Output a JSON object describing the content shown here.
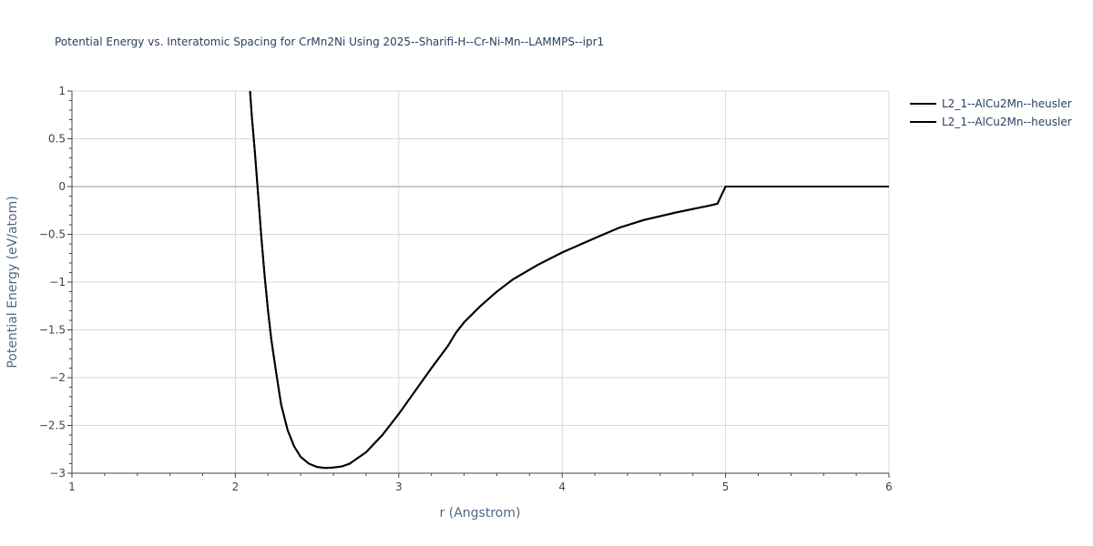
{
  "colors": {
    "background": "#ffffff",
    "grid": "#d9d9d9",
    "zero_line": "#c8c8c8",
    "axis_line": "#444444",
    "text": "#2a3f5f",
    "axis_title": "#506784",
    "series": "#000000"
  },
  "chart_data": {
    "type": "line",
    "title": "Potential Energy vs. Interatomic Spacing for CrMn2Ni Using 2025--Sharifi-H--Cr-Ni-Mn--LAMMPS--ipr1",
    "xlabel": "r (Angstrom)",
    "ylabel": "Potential Energy (eV/atom)",
    "xlim": [
      1,
      6
    ],
    "ylim": [
      -3,
      1
    ],
    "x_ticks": [
      1,
      2,
      3,
      4,
      5,
      6
    ],
    "x_tick_labels": [
      "1",
      "2",
      "3",
      "4",
      "5",
      "6"
    ],
    "y_ticks": [
      -3,
      -2.5,
      -2,
      -1.5,
      -1,
      -0.5,
      0,
      0.5,
      1
    ],
    "y_tick_labels": [
      "−3",
      "−2.5",
      "−2",
      "−1.5",
      "−1",
      "−0.5",
      "0",
      "0.5",
      "1"
    ],
    "grid": true,
    "legend_position": "top-right",
    "series": [
      {
        "name": "L2_1--AlCu2Mn--heusler",
        "color": "#000000",
        "x": [
          2.09,
          2.1,
          2.12,
          2.14,
          2.16,
          2.18,
          2.2,
          2.22,
          2.25,
          2.28,
          2.32,
          2.36,
          2.4,
          2.45,
          2.5,
          2.55,
          2.6,
          2.65,
          2.7,
          2.8,
          2.9,
          3.0,
          3.1,
          3.2,
          3.3,
          3.35,
          3.4,
          3.5,
          3.6,
          3.7,
          3.85,
          4.0,
          4.2,
          4.35,
          4.5,
          4.7,
          4.9,
          4.95,
          5.0,
          5.2,
          5.5,
          6.0
        ],
        "y": [
          1.0,
          0.75,
          0.35,
          -0.1,
          -0.55,
          -0.95,
          -1.3,
          -1.6,
          -1.95,
          -2.28,
          -2.55,
          -2.72,
          -2.83,
          -2.9,
          -2.935,
          -2.945,
          -2.94,
          -2.93,
          -2.9,
          -2.78,
          -2.6,
          -2.38,
          -2.14,
          -1.9,
          -1.67,
          -1.53,
          -1.42,
          -1.25,
          -1.1,
          -0.97,
          -0.82,
          -0.69,
          -0.54,
          -0.43,
          -0.35,
          -0.27,
          -0.2,
          -0.18,
          0.0,
          0.0,
          0.0,
          0.0
        ]
      },
      {
        "name": "L2_1--AlCu2Mn--heusler",
        "color": "#000000",
        "x": [
          2.09,
          2.1,
          2.12,
          2.14,
          2.16,
          2.18,
          2.2,
          2.22,
          2.25,
          2.28,
          2.32,
          2.36,
          2.4,
          2.45,
          2.5,
          2.55,
          2.6,
          2.65,
          2.7,
          2.8,
          2.9,
          3.0,
          3.1,
          3.2,
          3.3,
          3.35,
          3.4,
          3.5,
          3.6,
          3.7,
          3.85,
          4.0,
          4.2,
          4.35,
          4.5,
          4.7,
          4.9,
          4.95,
          5.0,
          5.2,
          5.5,
          6.0
        ],
        "y": [
          1.0,
          0.75,
          0.35,
          -0.1,
          -0.55,
          -0.95,
          -1.3,
          -1.6,
          -1.95,
          -2.28,
          -2.55,
          -2.72,
          -2.83,
          -2.9,
          -2.935,
          -2.945,
          -2.94,
          -2.93,
          -2.9,
          -2.78,
          -2.6,
          -2.38,
          -2.14,
          -1.9,
          -1.67,
          -1.53,
          -1.42,
          -1.25,
          -1.1,
          -0.97,
          -0.82,
          -0.69,
          -0.54,
          -0.43,
          -0.35,
          -0.27,
          -0.2,
          -0.18,
          0.0,
          0.0,
          0.0,
          0.0
        ]
      }
    ]
  }
}
